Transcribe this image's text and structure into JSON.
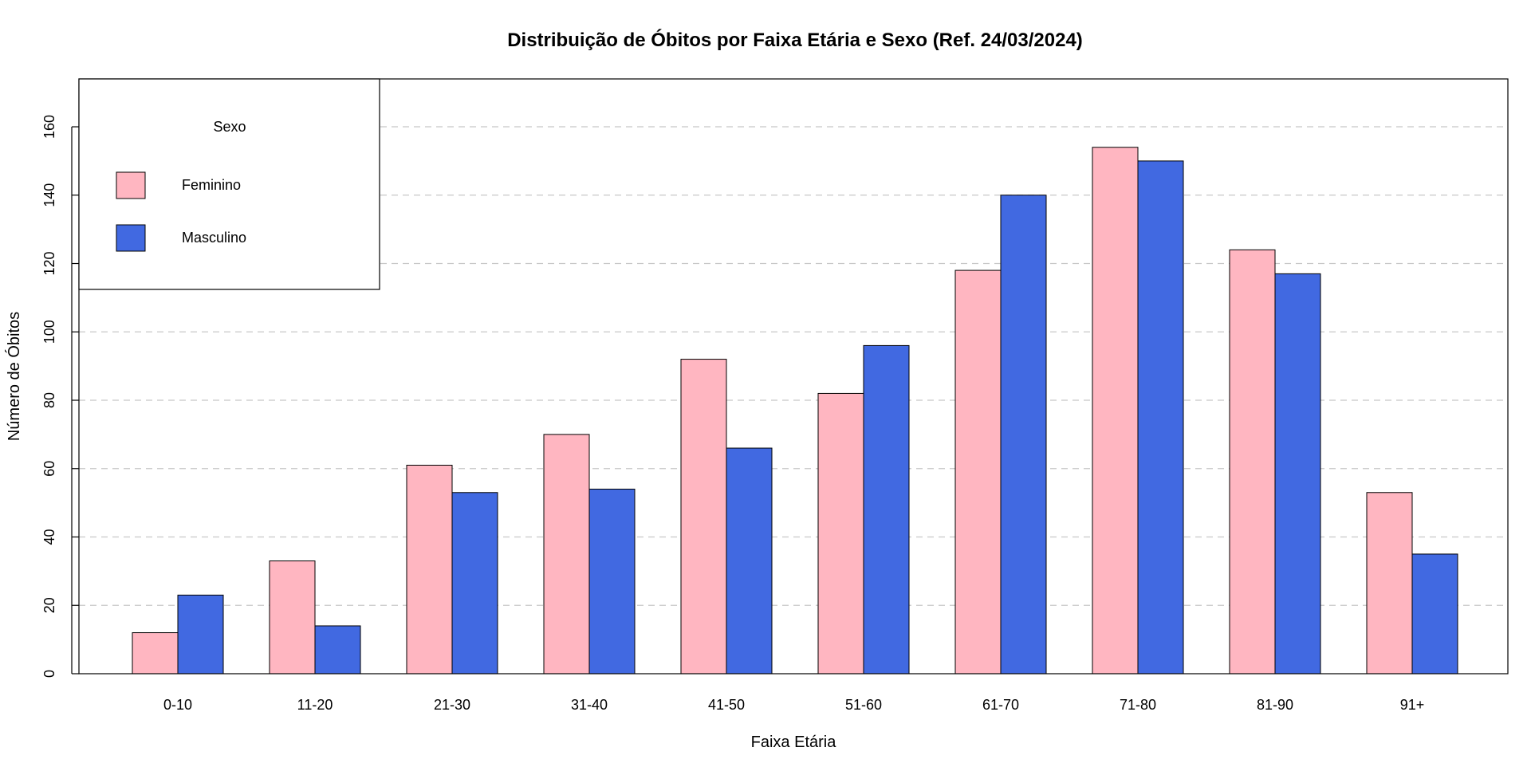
{
  "chart_data": {
    "type": "bar",
    "title": "Distribuição de Óbitos por Faixa Etária e Sexo (Ref. 24/03/2024)",
    "xlabel": "Faixa Etária",
    "ylabel": "Número de Óbitos",
    "categories": [
      "0-10",
      "11-20",
      "21-30",
      "31-40",
      "41-50",
      "51-60",
      "61-70",
      "71-80",
      "81-90",
      "91+"
    ],
    "series": [
      {
        "name": "Feminino",
        "color": "#FFB6C1",
        "values": [
          12,
          33,
          61,
          70,
          92,
          82,
          118,
          154,
          124,
          53
        ]
      },
      {
        "name": "Masculino",
        "color": "#4169E1",
        "values": [
          23,
          14,
          53,
          54,
          66,
          96,
          140,
          150,
          117,
          35
        ]
      }
    ],
    "ylim": [
      0,
      174
    ],
    "yticks": [
      0,
      20,
      40,
      60,
      80,
      100,
      120,
      140,
      160
    ],
    "grid": true,
    "legend": {
      "title": "Sexo",
      "position": "top-left"
    }
  }
}
